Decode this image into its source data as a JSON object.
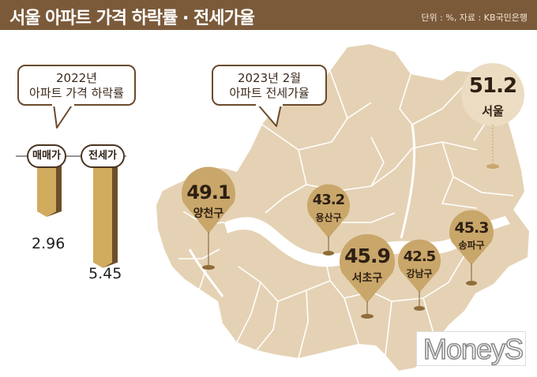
{
  "header": {
    "title": "서울 아파트 가격 하락률 · 전세가율",
    "source": "단위 : %, 자료 : KB국민은행"
  },
  "left_callout": {
    "line1": "2022년",
    "line2": "아파트 가격 하락률"
  },
  "bars": [
    {
      "label": "매매가",
      "value": "2.96",
      "rate": 2.96
    },
    {
      "label": "전세가",
      "value": "5.45",
      "rate": 5.45
    }
  ],
  "map_callout": {
    "line1": "2023년 2월",
    "line2": "아파트 전세가율"
  },
  "regions": [
    {
      "name": "서울",
      "value": "51.2"
    },
    {
      "name": "양천구",
      "value": "49.1"
    },
    {
      "name": "용산구",
      "value": "43.2"
    },
    {
      "name": "서초구",
      "value": "45.9"
    },
    {
      "name": "강남구",
      "value": "42.5"
    },
    {
      "name": "송파구",
      "value": "45.3"
    }
  ],
  "logo": "MoneyS",
  "colors": {
    "header": "#7b5a3a",
    "map_fill": "#e5d2b4",
    "river": "#ffffff",
    "marker": "#c9a66a",
    "bar_front": "#d1ab5e",
    "bar_side": "#6c4f29"
  }
}
